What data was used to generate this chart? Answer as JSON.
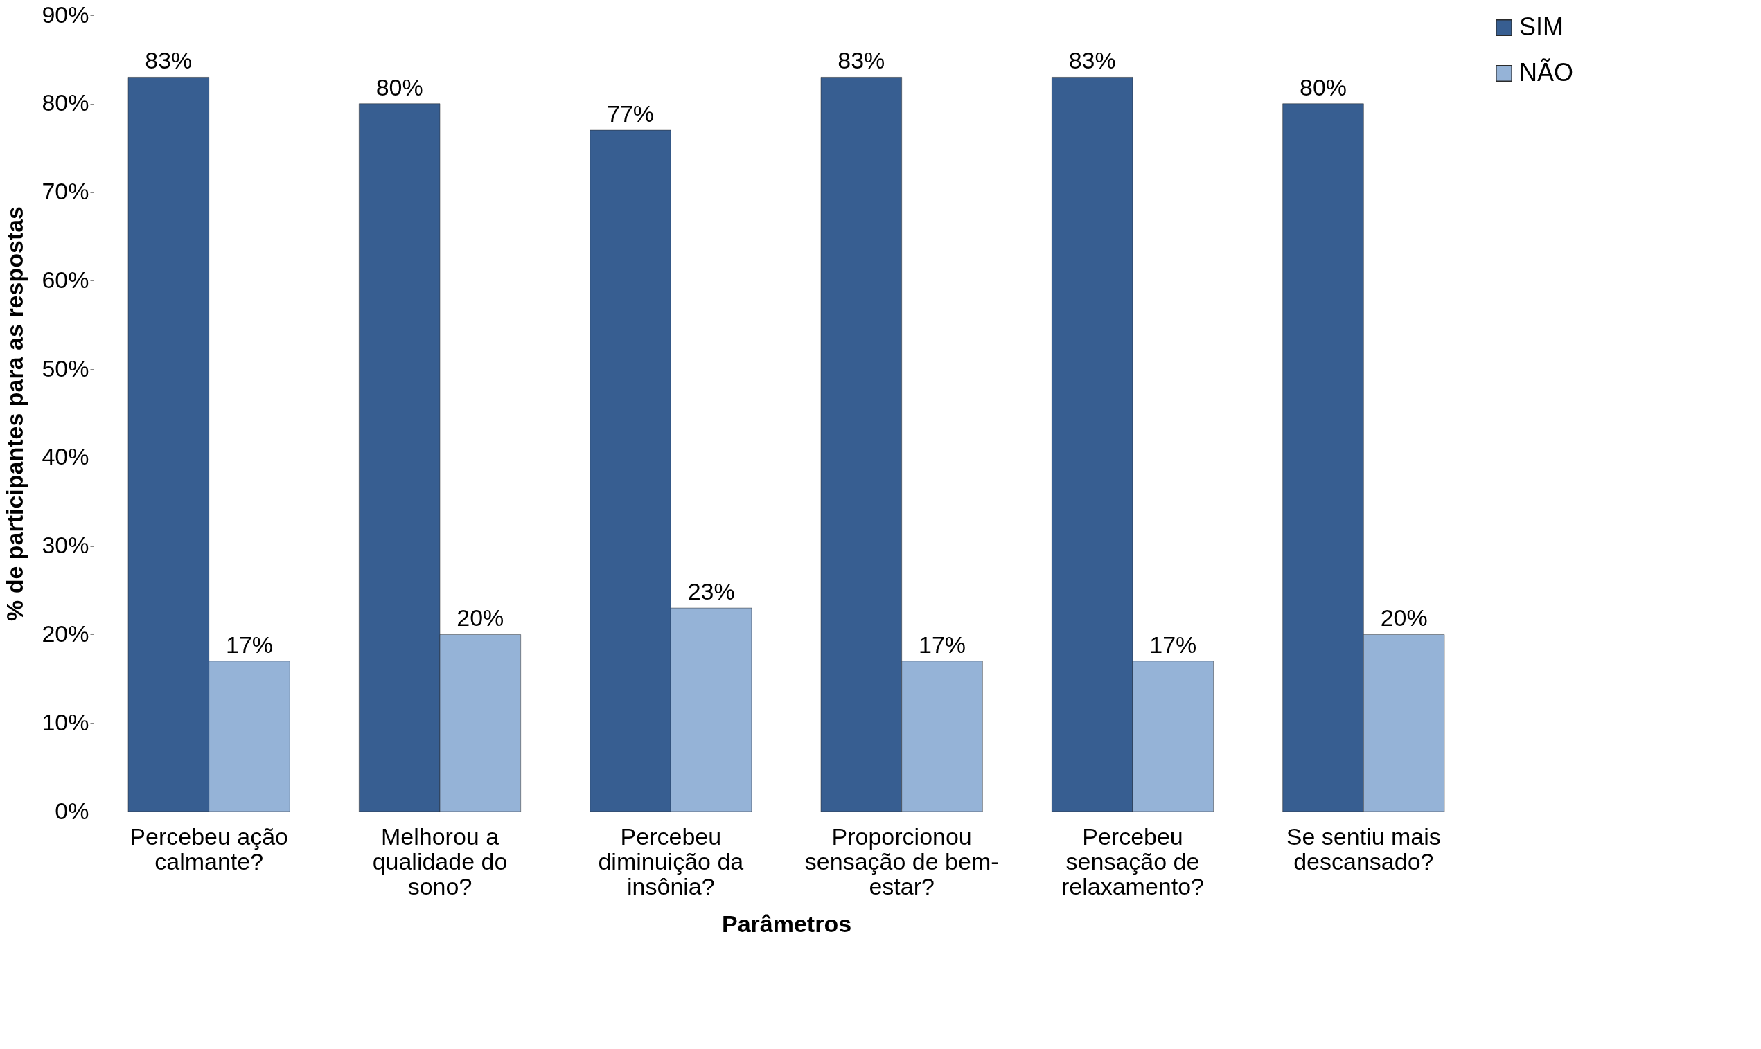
{
  "chart_data": {
    "type": "bar",
    "xlabel": "Parâmetros",
    "ylabel": "% de participantes  para as respostas",
    "categories": [
      "Percebeu ação calmante?",
      "Melhorou a qualidade do sono?",
      "Percebeu diminuição da insônia?",
      "Proporcionou sensação de bem-estar?",
      "Percebeu sensação de relaxamento?",
      "Se sentiu mais descansado?"
    ],
    "series": [
      {
        "name": "SIM",
        "color": "#375e91",
        "values": [
          83,
          80,
          77,
          83,
          83,
          80
        ],
        "value_labels": [
          "83%",
          "80%",
          "77%",
          "83%",
          "83%",
          "80%"
        ]
      },
      {
        "name": "NÃO",
        "color": "#95b3d7",
        "values": [
          17,
          20,
          23,
          17,
          17,
          20
        ],
        "value_labels": [
          "17%",
          "20%",
          "23%",
          "17%",
          "17%",
          "20%"
        ]
      }
    ],
    "ylim": [
      0,
      90
    ],
    "yticks": [
      {
        "value": 0,
        "label": "0%"
      },
      {
        "value": 10,
        "label": "10%"
      },
      {
        "value": 20,
        "label": "20%"
      },
      {
        "value": 30,
        "label": "30%"
      },
      {
        "value": 40,
        "label": "40%"
      },
      {
        "value": 50,
        "label": "50%"
      },
      {
        "value": 60,
        "label": "60%"
      },
      {
        "value": 70,
        "label": "70%"
      },
      {
        "value": 80,
        "label": "80%"
      },
      {
        "value": 90,
        "label": "90%"
      }
    ],
    "grid": false,
    "legend": "right"
  }
}
